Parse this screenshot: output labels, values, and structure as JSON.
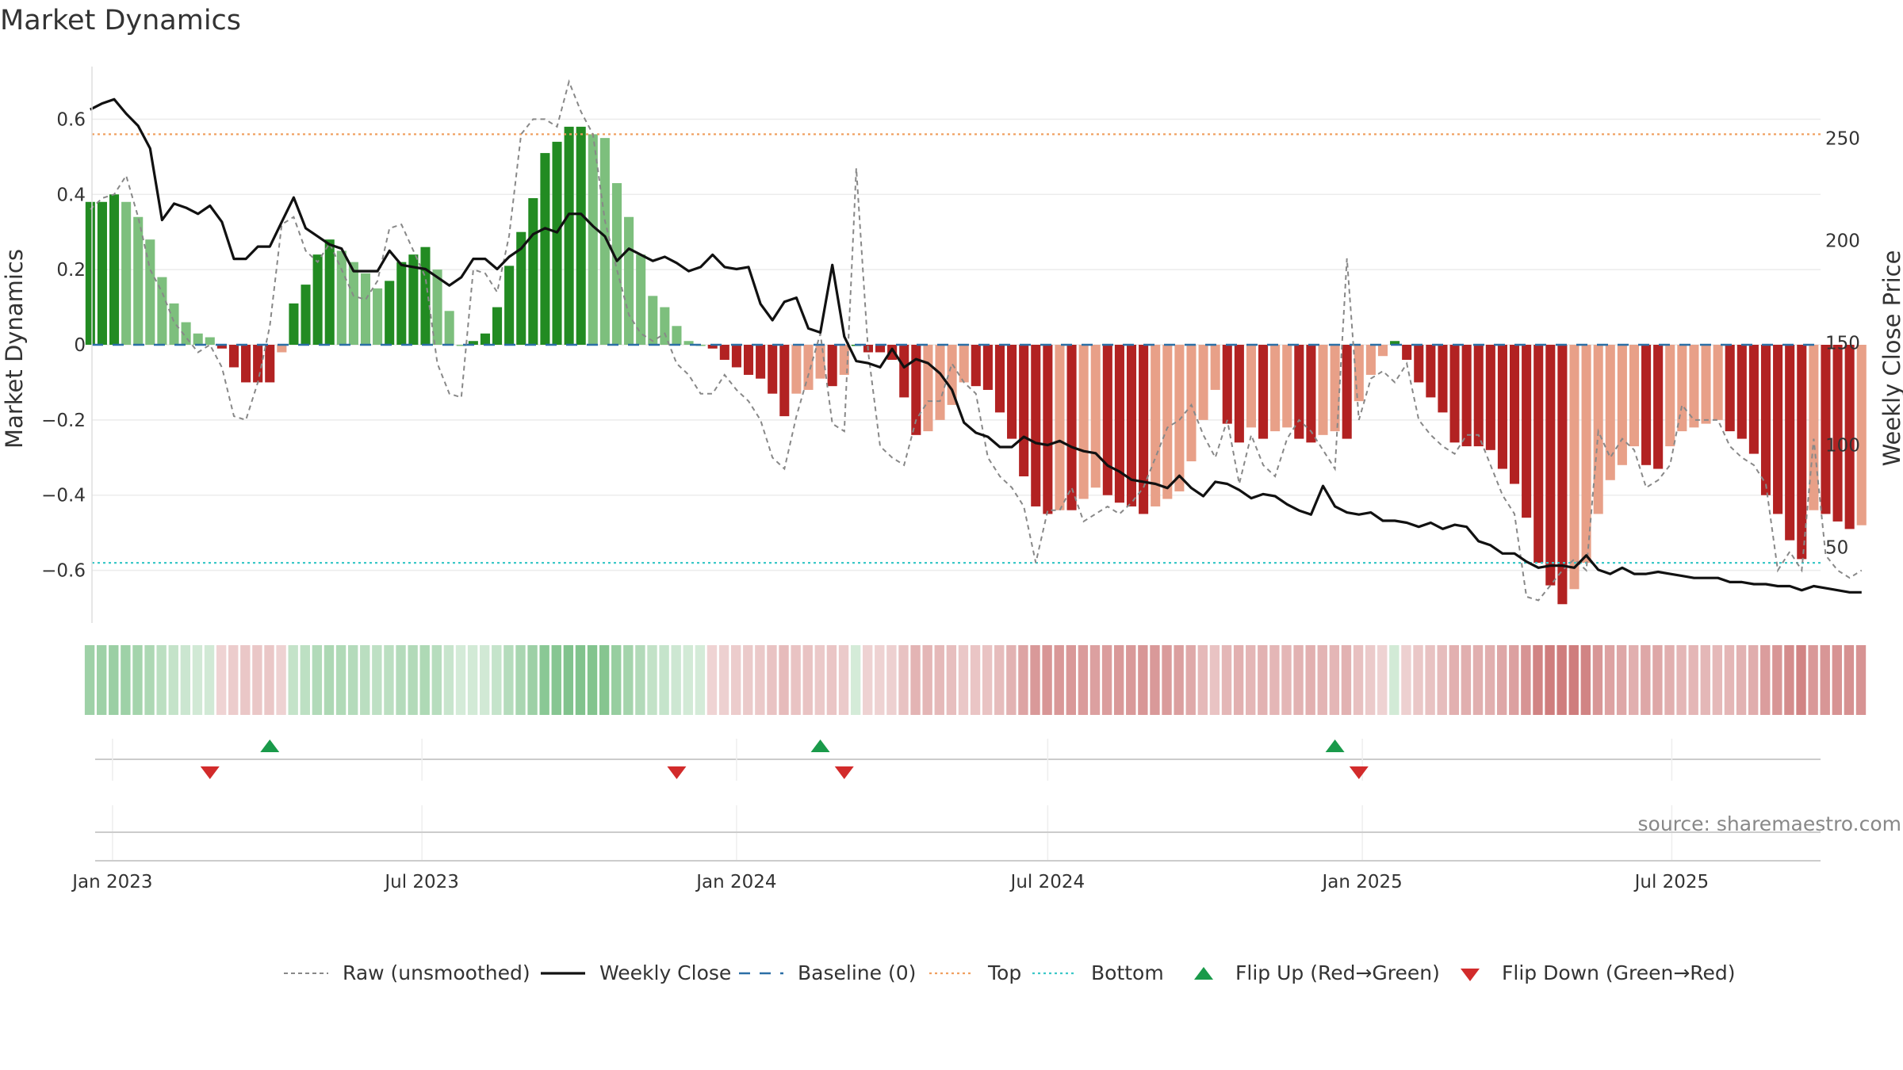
{
  "chart_data": {
    "type": "bar",
    "title": "Market Dynamics",
    "ylabel": "Market Dynamics",
    "y2label": "Weekly Close Price",
    "ylim": [
      -0.74,
      0.74
    ],
    "y2lim": [
      13,
      285
    ],
    "yticks": [
      {
        "v": 0.6,
        "label": "0.6"
      },
      {
        "v": 0.4,
        "label": "0.4"
      },
      {
        "v": 0.2,
        "label": "0.2"
      },
      {
        "v": 0,
        "label": "0"
      },
      {
        "v": -0.2,
        "label": "−0.2"
      },
      {
        "v": -0.4,
        "label": "−0.4"
      },
      {
        "v": -0.6,
        "label": "−0.6"
      }
    ],
    "y2ticks": [
      {
        "v": 250,
        "label": "250"
      },
      {
        "v": 200,
        "label": "200"
      },
      {
        "v": 150,
        "label": "150"
      },
      {
        "v": 100,
        "label": "100"
      },
      {
        "v": 50,
        "label": "50"
      }
    ],
    "xlim": [
      "2022-12-20",
      "2025-09-26"
    ],
    "xticks": [
      {
        "date": "2023-01-01",
        "label": "Jan 2023"
      },
      {
        "date": "2023-07-01",
        "label": "Jul 2023"
      },
      {
        "date": "2024-01-01",
        "label": "Jan 2024"
      },
      {
        "date": "2024-07-01",
        "label": "Jul 2024"
      },
      {
        "date": "2025-01-01",
        "label": "Jan 2025"
      },
      {
        "date": "2025-07-01",
        "label": "Jul 2025"
      }
    ],
    "top_level": 0.56,
    "bottom_level": -0.58,
    "baseline": 0,
    "start_week": "2022-12-19",
    "histogram": [
      0.38,
      0.38,
      0.4,
      0.38,
      0.34,
      0.28,
      0.18,
      0.11,
      0.06,
      0.03,
      0.02,
      -0.01,
      -0.06,
      -0.1,
      -0.1,
      -0.1,
      -0.02,
      0.11,
      0.16,
      0.24,
      0.28,
      0.25,
      0.22,
      0.19,
      0.15,
      0.17,
      0.22,
      0.24,
      0.26,
      0.2,
      0.09,
      0.0,
      0.01,
      0.03,
      0.1,
      0.21,
      0.3,
      0.39,
      0.51,
      0.54,
      0.58,
      0.58,
      0.56,
      0.55,
      0.43,
      0.34,
      0.24,
      0.13,
      0.1,
      0.05,
      0.01,
      0.0,
      -0.01,
      -0.04,
      -0.06,
      -0.08,
      -0.09,
      -0.13,
      -0.19,
      -0.13,
      -0.12,
      -0.09,
      -0.11,
      -0.08,
      0.0,
      -0.02,
      -0.02,
      -0.04,
      -0.14,
      -0.24,
      -0.23,
      -0.2,
      -0.16,
      -0.1,
      -0.11,
      -0.12,
      -0.18,
      -0.25,
      -0.35,
      -0.43,
      -0.45,
      -0.44,
      -0.44,
      -0.41,
      -0.38,
      -0.4,
      -0.42,
      -0.43,
      -0.45,
      -0.43,
      -0.41,
      -0.39,
      -0.31,
      -0.2,
      -0.12,
      -0.21,
      -0.26,
      -0.22,
      -0.25,
      -0.23,
      -0.22,
      -0.25,
      -0.26,
      -0.24,
      -0.23,
      -0.25,
      -0.15,
      -0.08,
      -0.03,
      0.01,
      -0.04,
      -0.1,
      -0.14,
      -0.18,
      -0.26,
      -0.27,
      -0.27,
      -0.28,
      -0.33,
      -0.37,
      -0.46,
      -0.58,
      -0.64,
      -0.69,
      -0.65,
      -0.58,
      -0.45,
      -0.36,
      -0.32,
      -0.27,
      -0.32,
      -0.33,
      -0.27,
      -0.23,
      -0.22,
      -0.21,
      -0.2,
      -0.23,
      -0.25,
      -0.29,
      -0.4,
      -0.45,
      -0.52,
      -0.57,
      -0.44,
      -0.45,
      -0.47,
      -0.49,
      -0.48
    ],
    "raw": [
      0.36,
      0.39,
      0.4,
      0.45,
      0.34,
      0.2,
      0.14,
      0.06,
      0.02,
      -0.02,
      0.0,
      -0.06,
      -0.19,
      -0.2,
      -0.1,
      0.05,
      0.32,
      0.34,
      0.25,
      0.22,
      0.27,
      0.2,
      0.13,
      0.12,
      0.17,
      0.31,
      0.32,
      0.25,
      0.18,
      -0.05,
      -0.13,
      -0.14,
      0.2,
      0.19,
      0.14,
      0.29,
      0.56,
      0.6,
      0.6,
      0.58,
      0.7,
      0.62,
      0.56,
      0.33,
      0.2,
      0.08,
      0.03,
      0.01,
      0.03,
      -0.05,
      -0.08,
      -0.13,
      -0.13,
      -0.08,
      -0.12,
      -0.15,
      -0.2,
      -0.3,
      -0.33,
      -0.19,
      -0.08,
      0.03,
      -0.21,
      -0.23,
      0.47,
      -0.02,
      -0.27,
      -0.3,
      -0.32,
      -0.2,
      -0.15,
      -0.15,
      -0.05,
      -0.1,
      -0.13,
      -0.3,
      -0.35,
      -0.38,
      -0.43,
      -0.58,
      -0.44,
      -0.44,
      -0.38,
      -0.47,
      -0.45,
      -0.43,
      -0.45,
      -0.42,
      -0.38,
      -0.3,
      -0.22,
      -0.2,
      -0.16,
      -0.24,
      -0.3,
      -0.2,
      -0.37,
      -0.24,
      -0.32,
      -0.35,
      -0.25,
      -0.2,
      -0.23,
      -0.28,
      -0.33,
      0.23,
      -0.2,
      -0.09,
      -0.07,
      -0.1,
      -0.05,
      -0.2,
      -0.24,
      -0.27,
      -0.29,
      -0.24,
      -0.24,
      -0.32,
      -0.4,
      -0.45,
      -0.67,
      -0.68,
      -0.64,
      -0.6,
      -0.57,
      -0.6,
      -0.23,
      -0.3,
      -0.25,
      -0.28,
      -0.38,
      -0.36,
      -0.32,
      -0.16,
      -0.2,
      -0.2,
      -0.2,
      -0.27,
      -0.3,
      -0.32,
      -0.37,
      -0.6,
      -0.55,
      -0.6,
      -0.25,
      -0.56,
      -0.6,
      -0.62,
      -0.6
    ],
    "price": [
      264,
      267,
      269,
      262,
      256,
      245,
      210,
      218,
      216,
      213,
      217,
      209,
      191,
      191,
      197,
      197,
      209,
      221,
      206,
      202,
      198,
      196,
      185,
      185,
      185,
      195,
      188,
      187,
      186,
      182,
      178,
      182,
      191,
      191,
      186,
      192,
      196,
      203,
      206,
      204,
      213,
      213,
      207,
      202,
      190,
      196,
      193,
      190,
      192,
      189,
      185,
      187,
      193,
      187,
      186,
      187,
      169,
      161,
      170,
      172,
      157,
      155,
      188,
      153,
      141,
      140,
      138,
      147,
      138,
      142,
      140,
      135,
      127,
      111,
      106,
      104,
      99,
      99,
      104,
      101,
      100,
      102,
      99,
      97,
      96,
      90,
      87,
      83,
      82,
      81,
      79,
      85,
      79,
      75,
      82,
      81,
      78,
      74,
      76,
      75,
      71,
      68,
      66,
      80,
      70,
      67,
      66,
      67,
      63,
      63,
      62,
      60,
      62,
      59,
      61,
      60,
      53,
      51,
      47,
      47,
      43,
      40,
      41,
      41,
      40,
      46,
      39,
      37,
      40,
      37,
      37,
      38,
      37,
      36,
      35,
      35,
      35,
      33,
      33,
      32,
      32,
      31,
      31,
      29,
      31,
      30,
      29,
      28,
      28
    ],
    "flip_up_dates": [
      "2023-04-03",
      "2024-02-19",
      "2024-12-16"
    ],
    "flip_down_dates": [
      "2023-02-27",
      "2023-11-27",
      "2024-03-04",
      "2024-12-30"
    ],
    "legend": [
      {
        "label": "Raw (unsmoothed)",
        "style": "gray-dashed"
      },
      {
        "label": "Weekly Close",
        "style": "black-solid"
      },
      {
        "label": "Baseline (0)",
        "style": "blue-dashed"
      },
      {
        "label": "Top",
        "style": "orange-dotted"
      },
      {
        "label": "Bottom",
        "style": "cyan-dotted"
      },
      {
        "label": "Flip Up (Red→Green)",
        "style": "green-triangle-up"
      },
      {
        "label": "Flip Down (Green→Red)",
        "style": "red-triangle-down"
      }
    ],
    "legend_position": "bottom",
    "colors": {
      "strong_green": "#228b22",
      "light_green": "#7dbf7d",
      "strong_red": "#b22222",
      "light_red": "#e8a088",
      "raw_line": "#888888",
      "price_line": "#111111",
      "baseline": "#2c6fa6",
      "top": "#f0a060",
      "bottom": "#3cc8c8",
      "flip_up": "#1a9a4a",
      "flip_down": "#d22b2b"
    },
    "source": "source: sharemaestro.com"
  }
}
